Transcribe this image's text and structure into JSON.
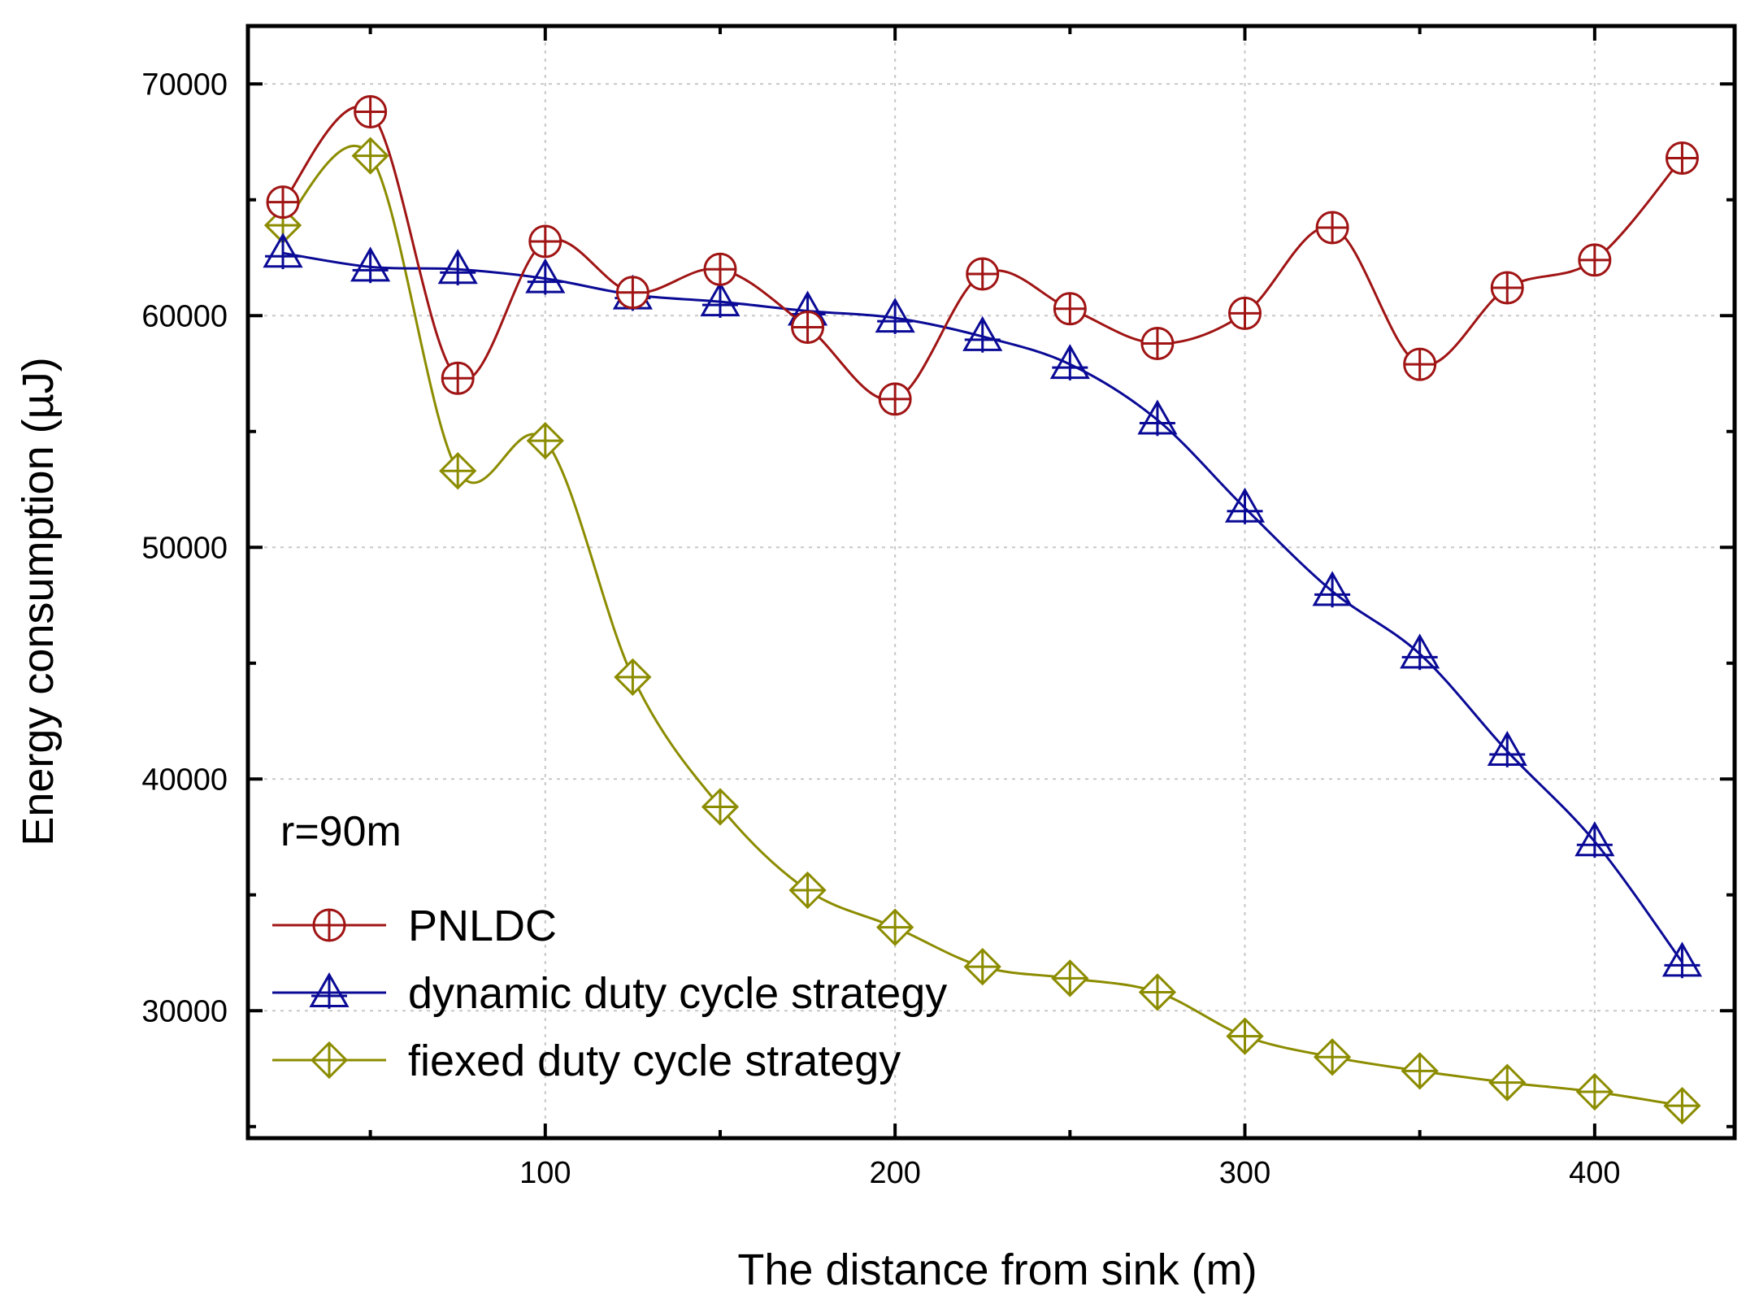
{
  "chart_data": {
    "type": "line",
    "xlabel": "The distance from sink (m)",
    "ylabel": "Energy consumption (µJ)",
    "xlim": [
      15,
      440
    ],
    "ylim": [
      24500,
      72500
    ],
    "x_ticks": [
      100,
      200,
      300,
      400
    ],
    "y_ticks": [
      30000,
      40000,
      50000,
      60000,
      70000
    ],
    "annotation": "r=90m",
    "grid": true,
    "legend_position": "bottom-left",
    "x": [
      25,
      50,
      75,
      100,
      125,
      150,
      175,
      200,
      225,
      250,
      275,
      300,
      325,
      350,
      375,
      400,
      425
    ],
    "series": [
      {
        "name": "PNLDC",
        "color": "#a01414",
        "marker": "circle-plus",
        "values": [
          64900,
          68800,
          57300,
          63200,
          61000,
          62000,
          59500,
          56400,
          61800,
          60300,
          58800,
          60100,
          63800,
          57900,
          61200,
          62400,
          66800
        ]
      },
      {
        "name": "dynamic duty cycle strategy",
        "color": "#0a0a96",
        "marker": "triangle-plus",
        "values": [
          62700,
          62100,
          62000,
          61600,
          60900,
          60600,
          60200,
          59900,
          59100,
          57900,
          55500,
          51700,
          48100,
          45400,
          41200,
          37300,
          32100
        ]
      },
      {
        "name": "fiexed duty cycle strategy",
        "color": "#8c8c00",
        "marker": "diamond-plus",
        "values": [
          63900,
          66900,
          53300,
          54600,
          44400,
          38800,
          35200,
          33600,
          31900,
          31400,
          30800,
          28900,
          28000,
          27400,
          26900,
          26500,
          25900
        ]
      }
    ]
  }
}
